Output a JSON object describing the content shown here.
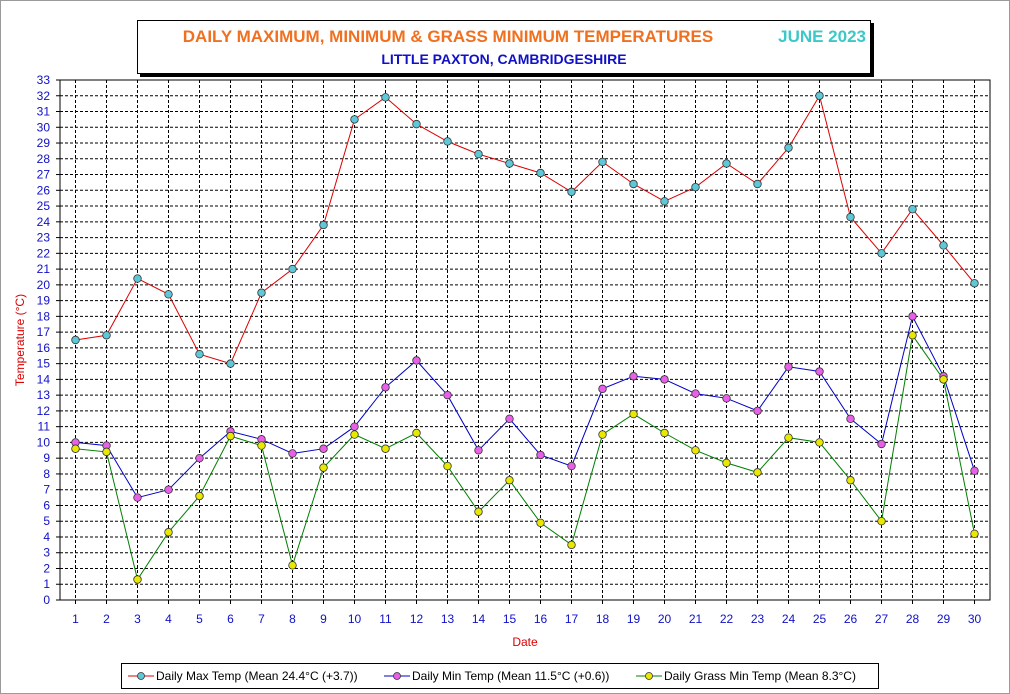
{
  "chart_data": {
    "type": "line",
    "title": "DAILY MAXIMUM, MINIMUM & GRASS MINIMUM TEMPERATURES",
    "period": "JUNE 2023",
    "subtitle": "LITTLE PAXTON, CAMBRIDGESHIRE",
    "xlabel": "Date",
    "ylabel": "Temperature (°C)",
    "ylim": [
      0,
      33
    ],
    "grid": true,
    "legend_position": "bottom",
    "x": [
      1,
      2,
      3,
      4,
      5,
      6,
      7,
      8,
      9,
      10,
      11,
      12,
      13,
      14,
      15,
      16,
      17,
      18,
      19,
      20,
      21,
      22,
      23,
      24,
      25,
      26,
      27,
      28,
      29,
      30
    ],
    "series": [
      {
        "name": "Daily Max Temp (Mean 24.4°C (+3.7))",
        "line_color": "#dc0000",
        "marker_color": "#5ec8d8",
        "values": [
          16.5,
          16.8,
          20.4,
          19.4,
          15.6,
          15.0,
          19.5,
          21.0,
          23.8,
          30.5,
          31.9,
          30.2,
          29.1,
          28.3,
          27.7,
          27.1,
          25.9,
          27.8,
          26.4,
          25.3,
          26.2,
          27.7,
          26.4,
          28.7,
          32.0,
          24.3,
          22.0,
          24.8,
          22.5,
          20.1
        ]
      },
      {
        "name": "Daily Min Temp (Mean 11.5°C (+0.6))",
        "line_color": "#0000c8",
        "marker_color": "#e860e8",
        "values": [
          10.0,
          9.8,
          6.5,
          7.0,
          9.0,
          10.7,
          10.2,
          9.3,
          9.6,
          11.0,
          13.5,
          15.2,
          13.0,
          9.5,
          11.5,
          9.2,
          8.5,
          13.4,
          14.2,
          14.0,
          13.1,
          12.8,
          12.0,
          14.8,
          14.5,
          11.5,
          9.9,
          18.0,
          14.2,
          8.2
        ]
      },
      {
        "name": "Daily Grass Min Temp (Mean 8.3°C)",
        "line_color": "#008000",
        "marker_color": "#e8e800",
        "values": [
          9.6,
          9.4,
          1.3,
          4.3,
          6.6,
          10.4,
          9.8,
          2.2,
          8.4,
          10.5,
          9.6,
          10.6,
          8.5,
          5.6,
          7.6,
          4.9,
          3.5,
          10.5,
          11.8,
          10.6,
          9.5,
          8.7,
          8.1,
          10.3,
          10.0,
          7.6,
          5.0,
          16.8,
          14.0,
          4.2
        ]
      }
    ]
  }
}
